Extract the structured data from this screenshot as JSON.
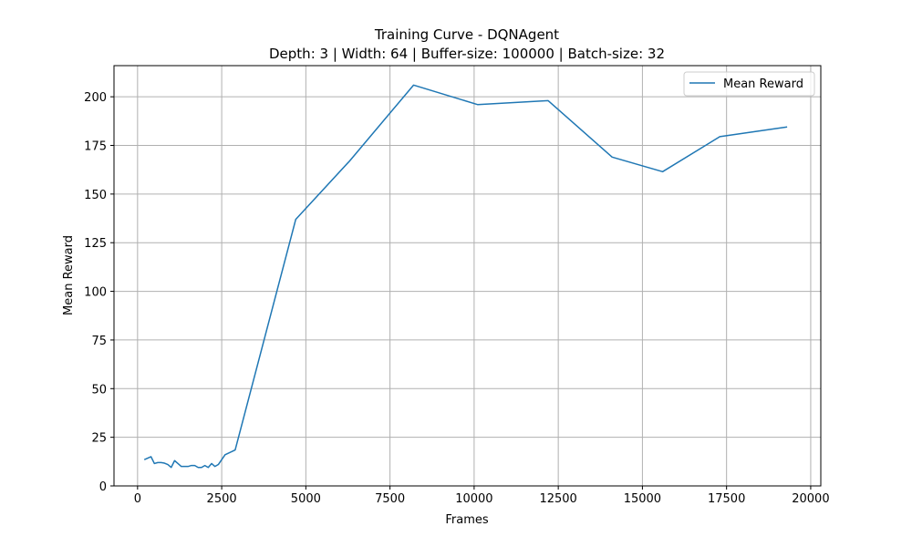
{
  "chart_data": {
    "type": "line",
    "title": "Training Curve - DQNAgent",
    "subtitle": "Depth: 3 | Width: 64 | Buffer-size: 100000 | Batch-size: 32",
    "xlabel": "Frames",
    "ylabel": "Mean Reward",
    "xlim": [
      -700,
      20300
    ],
    "ylim": [
      0,
      216
    ],
    "xticks": [
      0,
      2500,
      5000,
      7500,
      10000,
      12500,
      15000,
      17500,
      20000
    ],
    "yticks": [
      0,
      25,
      50,
      75,
      100,
      125,
      150,
      175,
      200
    ],
    "grid": true,
    "legend_position": "top-right",
    "series": [
      {
        "name": "Mean Reward",
        "color": "#1f77b4",
        "x": [
          200,
          400,
          500,
          600,
          700,
          800,
          900,
          1000,
          1100,
          1200,
          1300,
          1400,
          1500,
          1600,
          1700,
          1800,
          1900,
          2000,
          2100,
          2200,
          2300,
          2400,
          2600,
          2900,
          4700,
          6300,
          8200,
          10100,
          12200,
          14100,
          15600,
          17300,
          19300
        ],
        "y": [
          13.5,
          15,
          11.5,
          12,
          12,
          11.7,
          11,
          9.5,
          13,
          11.5,
          10,
          10,
          10,
          10.5,
          10.5,
          9.5,
          9.5,
          10.5,
          9.5,
          11.5,
          10,
          11,
          16,
          18.5,
          137,
          167,
          206,
          196,
          198,
          169,
          161.5,
          179.5,
          184.5
        ]
      }
    ]
  }
}
